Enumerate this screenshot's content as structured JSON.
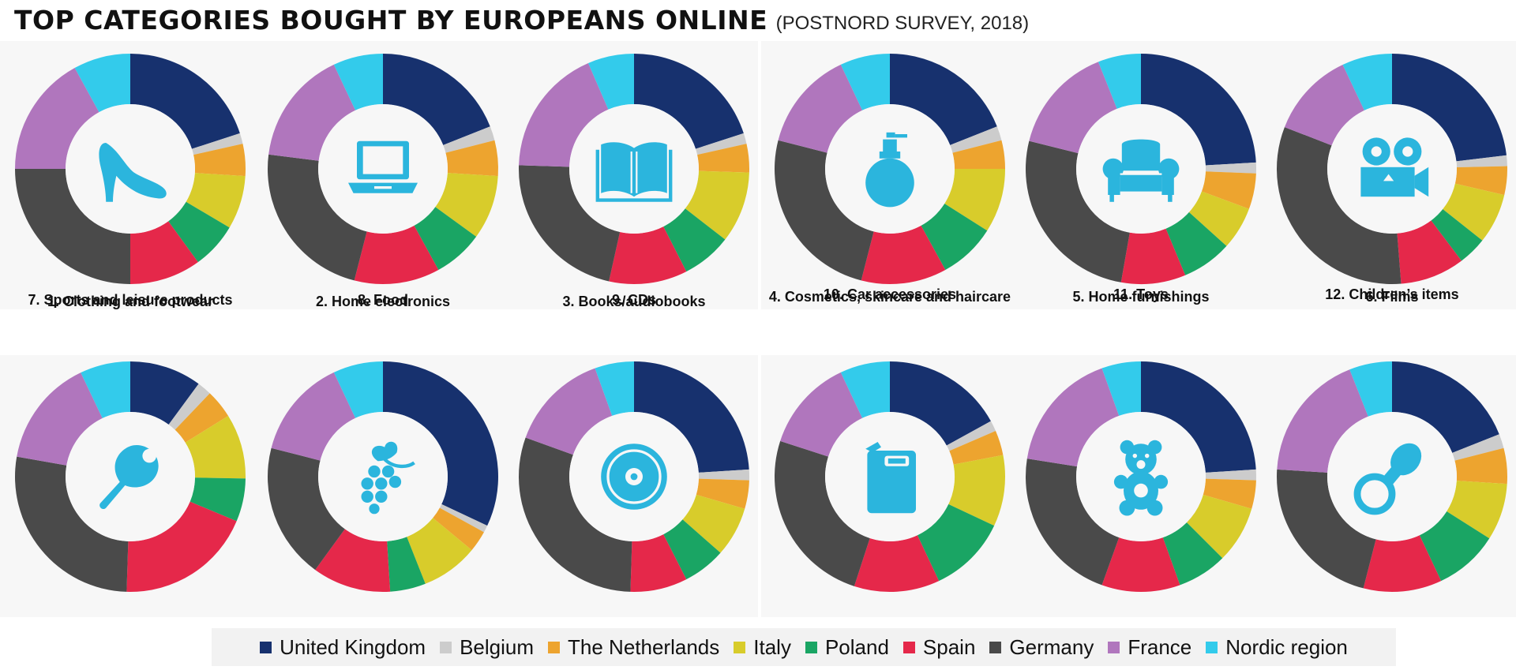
{
  "title": "TOP CATEGORIES BOUGHT BY EUROPEANS ONLINE",
  "subtitle": "(POSTNORD SURVEY, 2018)",
  "colors": {
    "United Kingdom": "#17316e",
    "Belgium": "#cccccc",
    "The Netherlands": "#eda42f",
    "Italy": "#d8cc2b",
    "Poland": "#1aa564",
    "Spain": "#e5284a",
    "Germany": "#4a4a4a",
    "France": "#b076bd",
    "Nordic region": "#33cbeb",
    "icon": "#2bb5dd"
  },
  "legend": [
    "United Kingdom",
    "Belgium",
    "The Netherlands",
    "Italy",
    "Poland",
    "Spain",
    "Germany",
    "France",
    "Nordic region"
  ],
  "chart_data": [
    {
      "type": "pie",
      "label": "1. Clothing and footwear",
      "icon": "high-heel-shoe-icon",
      "categories": [
        "United Kingdom",
        "Belgium",
        "The Netherlands",
        "Italy",
        "Poland",
        "Spain",
        "Germany",
        "France",
        "Nordic region"
      ],
      "values": [
        20,
        1.5,
        4.5,
        7.5,
        6.5,
        10,
        25,
        17,
        8
      ]
    },
    {
      "type": "pie",
      "label": "2. Home electronics",
      "icon": "laptop-icon",
      "categories": [
        "United Kingdom",
        "Belgium",
        "The Netherlands",
        "Italy",
        "Poland",
        "Spain",
        "Germany",
        "France",
        "Nordic region"
      ],
      "values": [
        19,
        2,
        5,
        9,
        7,
        12,
        23,
        16,
        7
      ]
    },
    {
      "type": "pie",
      "label": "3. Books/audiobooks",
      "icon": "open-book-icon",
      "categories": [
        "United Kingdom",
        "Belgium",
        "The Netherlands",
        "Italy",
        "Poland",
        "Spain",
        "Germany",
        "France",
        "Nordic region"
      ],
      "values": [
        20,
        1.5,
        4,
        10,
        7,
        11,
        22,
        18,
        6.5
      ]
    },
    {
      "type": "pie",
      "label": "4. Cosmetics, skincare and haircare",
      "icon": "perfume-bottle-icon",
      "categories": [
        "United Kingdom",
        "Belgium",
        "The Netherlands",
        "Italy",
        "Poland",
        "Spain",
        "Germany",
        "France",
        "Nordic region"
      ],
      "values": [
        19,
        2,
        4,
        9,
        8,
        12,
        25,
        14,
        7
      ]
    },
    {
      "type": "pie",
      "label": "5. Home furnishings",
      "icon": "armchair-icon",
      "categories": [
        "United Kingdom",
        "Belgium",
        "The Netherlands",
        "Italy",
        "Poland",
        "Spain",
        "Germany",
        "France",
        "Nordic region"
      ],
      "values": [
        24,
        1.5,
        5,
        6,
        7,
        9,
        26,
        15,
        6
      ]
    },
    {
      "type": "pie",
      "label": "6. Films",
      "icon": "movie-camera-icon",
      "categories": [
        "United Kingdom",
        "Belgium",
        "The Netherlands",
        "Italy",
        "Poland",
        "Spain",
        "Germany",
        "France",
        "Nordic region"
      ],
      "values": [
        23,
        1.5,
        4,
        7,
        4,
        9,
        32,
        12,
        7
      ]
    },
    {
      "type": "pie",
      "label": "7. Sports and leisure products",
      "icon": "table-tennis-icon",
      "categories": [
        "United Kingdom",
        "Belgium",
        "The Netherlands",
        "Italy",
        "Poland",
        "Spain",
        "Germany",
        "France",
        "Nordic region"
      ],
      "values": [
        10,
        2,
        4,
        9,
        6,
        19,
        27,
        15,
        7
      ]
    },
    {
      "type": "pie",
      "label": "8. Food",
      "icon": "grapes-icon",
      "categories": [
        "United Kingdom",
        "Belgium",
        "The Netherlands",
        "Italy",
        "Poland",
        "Spain",
        "Germany",
        "France",
        "Nordic region"
      ],
      "values": [
        32,
        1,
        3,
        8,
        5,
        11,
        19,
        14,
        7
      ]
    },
    {
      "type": "pie",
      "label": "9. CDs",
      "icon": "compact-disc-icon",
      "categories": [
        "United Kingdom",
        "Belgium",
        "The Netherlands",
        "Italy",
        "Poland",
        "Spain",
        "Germany",
        "France",
        "Nordic region"
      ],
      "values": [
        24,
        1.5,
        4,
        7,
        6,
        8,
        30,
        14,
        5.5
      ]
    },
    {
      "type": "pie",
      "label": "10. Car accessories",
      "icon": "fuel-can-icon",
      "categories": [
        "United Kingdom",
        "Belgium",
        "The Netherlands",
        "Italy",
        "Poland",
        "Spain",
        "Germany",
        "France",
        "Nordic region"
      ],
      "values": [
        17,
        1.5,
        3.5,
        10,
        11,
        12,
        25,
        13,
        7
      ]
    },
    {
      "type": "pie",
      "label": "11. Toys",
      "icon": "teddy-bear-icon",
      "categories": [
        "United Kingdom",
        "Belgium",
        "The Netherlands",
        "Italy",
        "Poland",
        "Spain",
        "Germany",
        "France",
        "Nordic region"
      ],
      "values": [
        24,
        1.5,
        4,
        8,
        7,
        11,
        22,
        17,
        5.5
      ]
    },
    {
      "type": "pie",
      "label": "12. Children’s items",
      "icon": "pacifier-icon",
      "categories": [
        "United Kingdom",
        "Belgium",
        "The Netherlands",
        "Italy",
        "Poland",
        "Spain",
        "Germany",
        "France",
        "Nordic region"
      ],
      "values": [
        19,
        2,
        5,
        8,
        9,
        11,
        22,
        18,
        6
      ]
    }
  ]
}
